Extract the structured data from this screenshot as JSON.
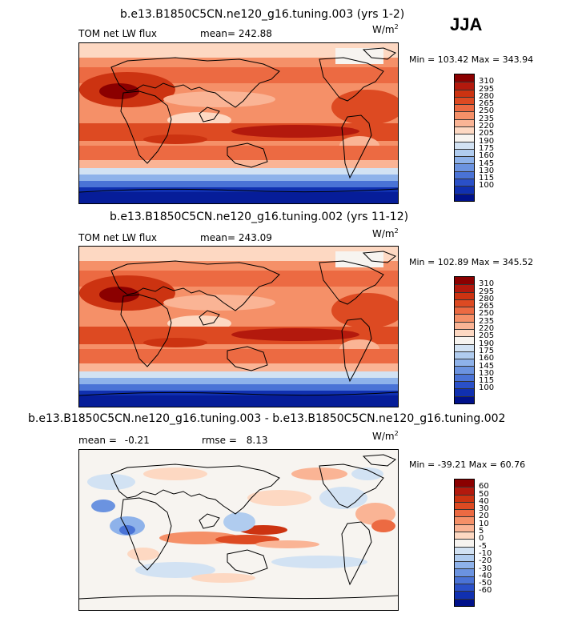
{
  "season": "JJA",
  "panels": [
    {
      "title": "b.e13.B1850C5CN.ne120_g16.tuning.003 (yrs 1-2)",
      "left_label": "TOM net LW flux",
      "stat_label": "mean=",
      "stat_value": "242.88",
      "units": "W/m",
      "units_exp": "2",
      "minmax": "Min = 103.42 Max = 343.94",
      "colorbar_labels": [
        "310",
        "295",
        "280",
        "265",
        "250",
        "235",
        "220",
        "205",
        "190",
        "175",
        "160",
        "145",
        "130",
        "115",
        "100"
      ],
      "colorbar_colors": [
        "#8b0000",
        "#b3190d",
        "#cc3311",
        "#dd4a22",
        "#ec6a42",
        "#f59068",
        "#fab495",
        "#fdd8c2",
        "#f7f4f0",
        "#d2e2f3",
        "#b0ccef",
        "#8eb2ea",
        "#6b93e0",
        "#4a73d6",
        "#2a50c8",
        "#1030b0",
        "#00118a"
      ]
    },
    {
      "title": "b.e13.B1850C5CN.ne120_g16.tuning.002 (yrs 11-12)",
      "left_label": "TOM net LW flux",
      "stat_label": "mean=",
      "stat_value": "243.09",
      "units": "W/m",
      "units_exp": "2",
      "minmax": "Min = 102.89 Max = 345.52",
      "colorbar_labels": [
        "310",
        "295",
        "280",
        "265",
        "250",
        "235",
        "220",
        "205",
        "190",
        "175",
        "160",
        "145",
        "130",
        "115",
        "100"
      ],
      "colorbar_colors": [
        "#8b0000",
        "#b3190d",
        "#cc3311",
        "#dd4a22",
        "#ec6a42",
        "#f59068",
        "#fab495",
        "#fdd8c2",
        "#f7f4f0",
        "#d2e2f3",
        "#b0ccef",
        "#8eb2ea",
        "#6b93e0",
        "#4a73d6",
        "#2a50c8",
        "#1030b0",
        "#00118a"
      ]
    },
    {
      "title": "b.e13.B1850C5CN.ne120_g16.tuning.003 - b.e13.B1850C5CN.ne120_g16.tuning.002",
      "left_label": "mean =",
      "left_value": "-0.21",
      "stat_label": "rmse =",
      "stat_value": "8.13",
      "units": "W/m",
      "units_exp": "2",
      "minmax": "Min = -39.21 Max = 60.76",
      "colorbar_labels": [
        "60",
        "50",
        "40",
        "30",
        "20",
        "10",
        "5",
        "0",
        "-5",
        "-10",
        "-20",
        "-30",
        "-40",
        "-50",
        "-60"
      ],
      "colorbar_colors": [
        "#8b0000",
        "#b3190d",
        "#cc3311",
        "#dd4a22",
        "#ec6a42",
        "#f59068",
        "#fab495",
        "#fdd8c2",
        "#f7f4f0",
        "#d2e2f3",
        "#b0ccef",
        "#8eb2ea",
        "#6b93e0",
        "#4a73d6",
        "#2a50c8",
        "#1030b0",
        "#00118a"
      ]
    }
  ]
}
